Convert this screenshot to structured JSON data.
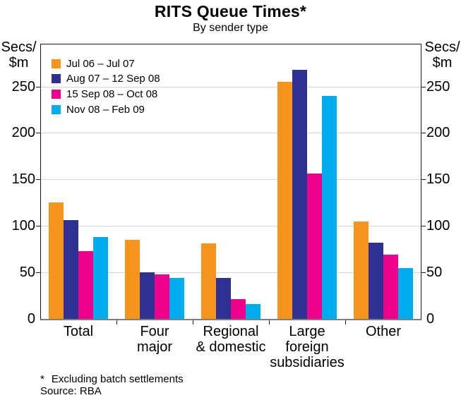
{
  "chart_data": {
    "type": "bar",
    "title": "RITS Queue Times*",
    "subtitle": "By sender type",
    "unit_label": "Secs/\n$m",
    "ylabel": "Secs/$m",
    "ylim": [
      0,
      296
    ],
    "yticks": [
      0,
      50,
      100,
      150,
      200,
      250
    ],
    "grid": true,
    "legend_position": "top-left",
    "categories": [
      "Total",
      "Four\nmajor",
      "Regional\n& domestic",
      "Large\nforeign\nsubsidiaries",
      "Other"
    ],
    "series": [
      {
        "name": "Jul 06 – Jul 07",
        "color": "#F7941D",
        "values": [
          125,
          85,
          81,
          255,
          105
        ]
      },
      {
        "name": "Aug 07 – 12 Sep 08",
        "color": "#2E3192",
        "values": [
          106,
          50,
          44,
          268,
          82
        ]
      },
      {
        "name": "15 Sep 08 – Oct 08",
        "color": "#EC008C",
        "values": [
          73,
          48,
          21,
          156,
          69
        ]
      },
      {
        "name": "Nov 08 – Feb 09",
        "color": "#00AEEF",
        "values": [
          88,
          44,
          16,
          240,
          55
        ]
      }
    ],
    "colors": {
      "gridline": "#d4d6d8",
      "axis_frame": "#1a1a1a",
      "baseline": "#7f7f7f"
    }
  },
  "notes": {
    "marker": "*",
    "text": "Excluding batch settlements",
    "source": "Source: RBA"
  }
}
